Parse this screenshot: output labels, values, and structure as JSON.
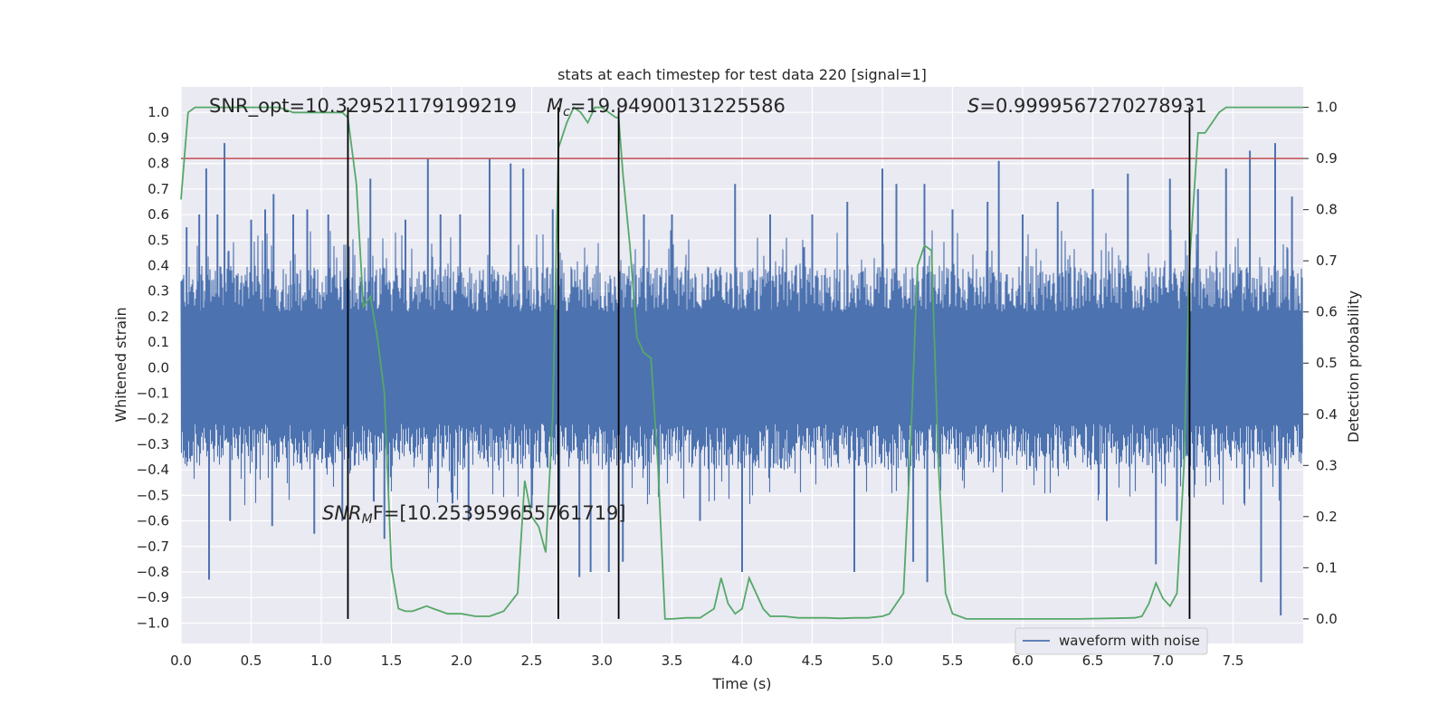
{
  "chart_data": {
    "type": "line",
    "title": "stats at each timestep for test data 220 [signal=1]",
    "xlabel": "Time (s)",
    "ylabel": "Whitened strain",
    "y2label": "Detection probability",
    "xlim": [
      0.0,
      8.0
    ],
    "ylim": [
      -1.08,
      1.1
    ],
    "y2lim": [
      -0.048,
      1.04
    ],
    "x_ticks": [
      0.0,
      0.5,
      1.0,
      1.5,
      2.0,
      2.5,
      3.0,
      3.5,
      4.0,
      4.5,
      5.0,
      5.5,
      6.0,
      6.5,
      7.0,
      7.5
    ],
    "x_tick_labels": [
      "0.0",
      "0.5",
      "1.0",
      "1.5",
      "2.0",
      "2.5",
      "3.0",
      "3.5",
      "4.0",
      "4.5",
      "5.0",
      "5.5",
      "6.0",
      "6.5",
      "7.0",
      "7.5"
    ],
    "y_ticks": [
      1.0,
      0.9,
      0.8,
      0.7,
      0.6,
      0.5,
      0.4,
      0.3,
      0.2,
      0.1,
      0.0,
      -0.1,
      -0.2,
      -0.3,
      -0.4,
      -0.5,
      -0.6,
      -0.7,
      -0.8,
      -0.9,
      -1.0
    ],
    "y_tick_labels": [
      "1.0",
      "0.9",
      "0.8",
      "0.7",
      "0.6",
      "0.5",
      "0.4",
      "0.3",
      "0.2",
      "0.1",
      "0.0",
      "−0.1",
      "−0.2",
      "−0.3",
      "−0.4",
      "−0.5",
      "−0.6",
      "−0.7",
      "−0.8",
      "−0.9",
      "−1.0"
    ],
    "y2_ticks": [
      1.0,
      0.9,
      0.8,
      0.7,
      0.6,
      0.5,
      0.4,
      0.3,
      0.2,
      0.1,
      0.0
    ],
    "y2_tick_labels": [
      "1.0",
      "0.9",
      "0.8",
      "0.7",
      "0.6",
      "0.5",
      "0.4",
      "0.3",
      "0.2",
      "0.1",
      "0.0"
    ],
    "threshold": {
      "y2": 0.9,
      "color": "#c44e52"
    },
    "vertical_lines_x": [
      1.19,
      2.69,
      3.12,
      7.19
    ],
    "annotations": {
      "snr_opt": "SNR_opt=10.329521179199219",
      "mc_symbol": "M",
      "mc_sub": "c",
      "mc_value": "=19.94900131225586",
      "s_symbol": "S",
      "s_value": "=0.9999567270278931",
      "snrmf_symbol": "SNR",
      "snrmf_sub": "M",
      "snrmf_value": "F=[10.253959655761719]"
    },
    "series": [
      {
        "name": "waveform with noise",
        "color": "#4c72b0",
        "kind": "noise",
        "envelope": 0.4,
        "spikes": [
          [
            0.04,
            0.55
          ],
          [
            0.13,
            0.6
          ],
          [
            0.18,
            0.78
          ],
          [
            0.2,
            -0.83
          ],
          [
            0.26,
            0.6
          ],
          [
            0.31,
            0.88
          ],
          [
            0.35,
            -0.6
          ],
          [
            0.5,
            0.58
          ],
          [
            0.6,
            0.62
          ],
          [
            0.65,
            -0.62
          ],
          [
            0.66,
            0.68
          ],
          [
            0.8,
            0.6
          ],
          [
            0.9,
            0.62
          ],
          [
            0.95,
            -0.65
          ],
          [
            1.05,
            0.6
          ],
          [
            1.15,
            -0.6
          ],
          [
            1.35,
            0.74
          ],
          [
            1.45,
            -0.67
          ],
          [
            1.6,
            0.58
          ],
          [
            1.76,
            0.82
          ],
          [
            1.85,
            0.6
          ],
          [
            1.99,
            0.6
          ],
          [
            2.05,
            -0.6
          ],
          [
            2.2,
            0.82
          ],
          [
            2.35,
            0.8
          ],
          [
            2.44,
            0.78
          ],
          [
            2.5,
            -0.55
          ],
          [
            2.65,
            0.62
          ],
          [
            2.84,
            -0.82
          ],
          [
            2.92,
            -0.8
          ],
          [
            3.05,
            -0.8
          ],
          [
            3.15,
            -0.76
          ],
          [
            3.3,
            0.6
          ],
          [
            3.5,
            0.6
          ],
          [
            3.7,
            -0.6
          ],
          [
            3.95,
            0.72
          ],
          [
            4.0,
            -0.8
          ],
          [
            4.2,
            0.6
          ],
          [
            4.5,
            0.6
          ],
          [
            4.75,
            0.65
          ],
          [
            4.8,
            -0.8
          ],
          [
            5.0,
            0.78
          ],
          [
            5.1,
            0.72
          ],
          [
            5.22,
            -0.76
          ],
          [
            5.3,
            0.72
          ],
          [
            5.32,
            -0.84
          ],
          [
            5.5,
            0.62
          ],
          [
            5.75,
            0.65
          ],
          [
            5.83,
            0.81
          ],
          [
            6.0,
            0.6
          ],
          [
            6.25,
            0.65
          ],
          [
            6.5,
            0.7
          ],
          [
            6.6,
            -0.6
          ],
          [
            6.75,
            0.76
          ],
          [
            6.95,
            -0.77
          ],
          [
            7.05,
            0.74
          ],
          [
            7.1,
            -0.6
          ],
          [
            7.25,
            0.7
          ],
          [
            7.45,
            0.78
          ],
          [
            7.62,
            0.85
          ],
          [
            7.7,
            -0.84
          ],
          [
            7.8,
            0.88
          ],
          [
            7.84,
            -0.97
          ],
          [
            7.92,
            0.67
          ]
        ]
      },
      {
        "name": "detection probability",
        "color": "#55a868",
        "axis": "right",
        "x": [
          0.0,
          0.05,
          0.1,
          0.15,
          0.2,
          0.3,
          0.4,
          0.5,
          0.6,
          0.7,
          0.8,
          0.9,
          1.0,
          1.1,
          1.15,
          1.19,
          1.25,
          1.3,
          1.35,
          1.4,
          1.45,
          1.5,
          1.55,
          1.6,
          1.65,
          1.7,
          1.75,
          1.8,
          1.85,
          1.9,
          2.0,
          2.1,
          2.2,
          2.3,
          2.4,
          2.45,
          2.5,
          2.55,
          2.6,
          2.65,
          2.69,
          2.75,
          2.8,
          2.85,
          2.9,
          2.95,
          3.0,
          3.05,
          3.1,
          3.12,
          3.15,
          3.2,
          3.25,
          3.3,
          3.35,
          3.4,
          3.45,
          3.5,
          3.6,
          3.7,
          3.8,
          3.85,
          3.9,
          3.95,
          4.0,
          4.05,
          4.1,
          4.15,
          4.2,
          4.3,
          4.4,
          4.5,
          4.6,
          4.7,
          4.8,
          4.9,
          5.0,
          5.05,
          5.1,
          5.15,
          5.2,
          5.25,
          5.3,
          5.35,
          5.4,
          5.45,
          5.5,
          5.6,
          5.7,
          5.8,
          5.9,
          6.0,
          6.2,
          6.4,
          6.6,
          6.8,
          6.85,
          6.9,
          6.95,
          7.0,
          7.05,
          7.1,
          7.15,
          7.19,
          7.25,
          7.3,
          7.35,
          7.4,
          7.45,
          7.5,
          7.6,
          7.7,
          7.8,
          7.9,
          8.0
        ],
        "y": [
          0.82,
          0.99,
          1.0,
          1.0,
          1.0,
          1.0,
          1.0,
          1.0,
          1.0,
          1.0,
          0.99,
          0.99,
          0.99,
          0.99,
          0.99,
          0.98,
          0.85,
          0.61,
          0.63,
          0.55,
          0.44,
          0.1,
          0.02,
          0.015,
          0.015,
          0.02,
          0.025,
          0.02,
          0.015,
          0.01,
          0.01,
          0.005,
          0.005,
          0.015,
          0.05,
          0.27,
          0.2,
          0.18,
          0.13,
          0.4,
          0.92,
          0.97,
          1.0,
          0.99,
          0.97,
          1.0,
          1.0,
          0.99,
          0.98,
          0.98,
          0.87,
          0.73,
          0.55,
          0.52,
          0.51,
          0.3,
          0.0,
          0.0,
          0.002,
          0.002,
          0.02,
          0.08,
          0.03,
          0.01,
          0.02,
          0.08,
          0.05,
          0.02,
          0.005,
          0.005,
          0.002,
          0.002,
          0.002,
          0.001,
          0.002,
          0.002,
          0.005,
          0.01,
          0.03,
          0.05,
          0.33,
          0.69,
          0.73,
          0.72,
          0.3,
          0.05,
          0.01,
          0.0,
          0.0,
          0.0,
          0.0,
          0.0,
          0.0,
          0.0,
          0.001,
          0.002,
          0.005,
          0.03,
          0.07,
          0.04,
          0.025,
          0.05,
          0.3,
          0.7,
          0.95,
          0.95,
          0.97,
          0.99,
          1.0,
          1.0,
          1.0,
          1.0,
          1.0,
          1.0,
          1.0
        ]
      }
    ],
    "legend": {
      "placement": "lower-right",
      "entries": [
        "waveform with noise"
      ]
    }
  }
}
